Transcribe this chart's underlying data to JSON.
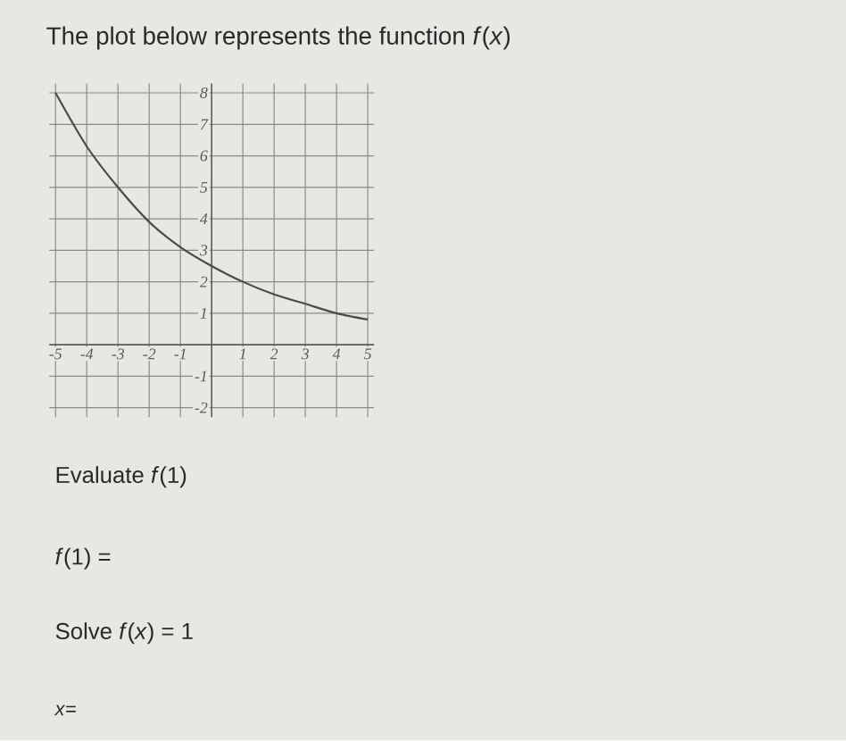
{
  "chart_data": {
    "type": "line",
    "title": "The plot below represents the function *f*(*x*)",
    "x": [
      -5,
      -4,
      -3,
      -2,
      -1,
      0,
      1,
      2,
      3,
      4,
      5
    ],
    "values": [
      8.0,
      6.3,
      5.0,
      3.9,
      3.1,
      2.5,
      2.0,
      1.6,
      1.3,
      1.0,
      0.8
    ],
    "color": "#4a4a4a",
    "xlim": [
      -5.2,
      5.2
    ],
    "ylim": [
      -2.3,
      8.3
    ],
    "xticks": [
      -5,
      -4,
      -3,
      -2,
      -1,
      1,
      2,
      3,
      4,
      5
    ],
    "yticks": [
      -2,
      -1,
      1,
      2,
      3,
      4,
      5,
      6,
      7,
      8
    ],
    "grid": true,
    "annotations": [
      "Evaluate *f*(1)",
      "*f*(1) =",
      "Solve *f*(*x*) = 1",
      "*x*="
    ]
  }
}
